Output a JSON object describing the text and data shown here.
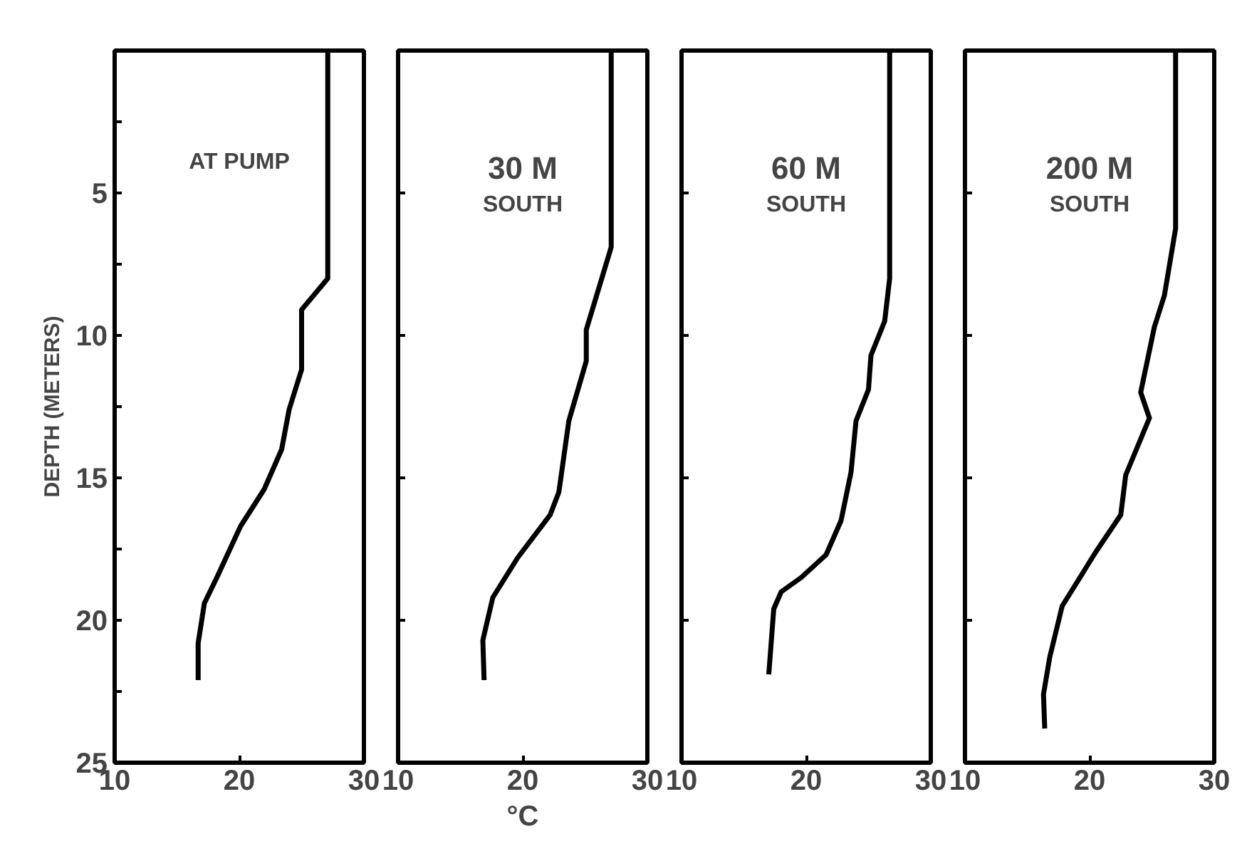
{
  "chart_data": [
    {
      "type": "line",
      "ylabel": "DEPTH (METERS)",
      "annotations": [
        "AT PUMP"
      ],
      "xlim": [
        10,
        30
      ],
      "xticks": [
        10,
        20,
        30
      ],
      "ylim": [
        25,
        0
      ],
      "yticks": [
        {
          "value": 2.5,
          "label": null
        },
        5,
        {
          "value": 7.5,
          "label": null
        },
        10,
        {
          "value": 12.5,
          "label": null
        },
        15,
        {
          "value": 17.5,
          "label": null
        },
        20,
        {
          "value": 22.5,
          "label": null
        },
        25
      ],
      "grid": false,
      "series": [
        {
          "color": "#000000",
          "x": [
            27.1,
            27.1,
            25.0,
            25.0,
            24.0,
            23.4,
            22.0,
            20.1,
            18.2,
            17.2,
            16.7,
            16.7
          ],
          "values": [
            0,
            8.0,
            9.1,
            11.2,
            12.6,
            14.0,
            15.4,
            16.7,
            18.5,
            19.4,
            20.8,
            22.1
          ]
        }
      ]
    },
    {
      "type": "line",
      "xlabel": "°C",
      "annotations": [
        "30 M",
        "SOUTH"
      ],
      "xlim": [
        10,
        30
      ],
      "xticks": [
        10,
        20,
        30
      ],
      "ylim": [
        25,
        0
      ],
      "yticks": [
        5,
        10,
        15,
        20,
        25
      ],
      "tick_labels": "x",
      "grid": false,
      "series": [
        {
          "color": "#000000",
          "x": [
            27.1,
            27.1,
            25.1,
            25.1,
            23.7,
            22.9,
            22.2,
            19.6,
            17.6,
            16.8,
            16.9
          ],
          "values": [
            0,
            6.9,
            9.8,
            10.9,
            13.0,
            15.5,
            16.3,
            17.8,
            19.2,
            20.7,
            22.1
          ]
        }
      ]
    },
    {
      "type": "line",
      "annotations": [
        "60 M",
        "SOUTH"
      ],
      "xlim": [
        10,
        30
      ],
      "xticks": [
        10,
        20,
        30
      ],
      "ylim": [
        25,
        0
      ],
      "yticks": [
        5,
        10,
        15,
        20,
        25
      ],
      "tick_labels": "x",
      "grid": false,
      "series": [
        {
          "color": "#000000",
          "x": [
            26.7,
            26.7,
            26.3,
            25.2,
            25.0,
            24.0,
            23.6,
            22.8,
            21.6,
            19.6,
            18.0,
            17.4,
            17.0
          ],
          "values": [
            0,
            8.0,
            9.5,
            10.7,
            11.9,
            13.0,
            14.8,
            16.5,
            17.7,
            18.5,
            19.0,
            19.6,
            21.9
          ]
        }
      ]
    },
    {
      "type": "line",
      "annotations": [
        "200 M",
        "SOUTH"
      ],
      "xlim": [
        10,
        30
      ],
      "xticks": [
        10,
        20,
        30
      ],
      "ylim": [
        25,
        0
      ],
      "yticks": [
        5,
        10,
        15,
        20,
        25
      ],
      "tick_labels": "x",
      "grid": false,
      "series": [
        {
          "color": "#000000",
          "x": [
            26.9,
            26.9,
            26.0,
            25.2,
            24.1,
            24.8,
            22.9,
            22.5,
            20.5,
            17.8,
            16.8,
            16.3,
            16.4
          ],
          "values": [
            0,
            6.25,
            8.6,
            9.7,
            12.0,
            12.9,
            14.9,
            16.3,
            17.6,
            19.5,
            21.3,
            22.6,
            23.8
          ]
        }
      ]
    }
  ]
}
